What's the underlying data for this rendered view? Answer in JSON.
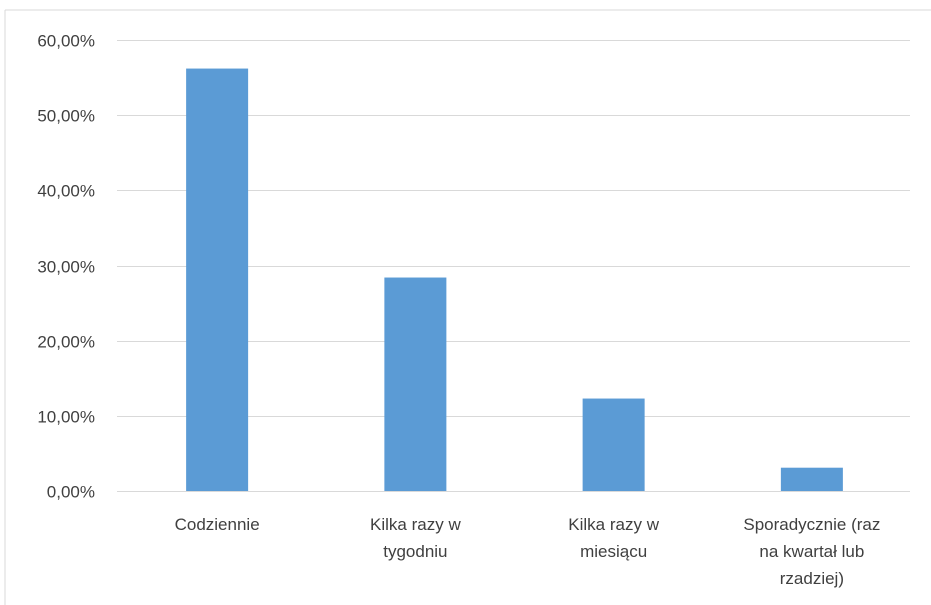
{
  "chart_data": {
    "type": "bar",
    "title": "",
    "xlabel": "",
    "ylabel": "",
    "categories": [
      [
        "Codziennie"
      ],
      [
        "Kilka razy w",
        "tygodniu"
      ],
      [
        "Kilka razy w",
        "miesiącu"
      ],
      [
        "Sporadycznie (raz",
        "na kwartał lub",
        "rzadziej)"
      ]
    ],
    "values": [
      56.2,
      28.4,
      12.3,
      3.1
    ],
    "ylim": [
      0,
      60
    ],
    "yticks": [
      0,
      10,
      20,
      30,
      40,
      50,
      60
    ],
    "ytick_labels": [
      "0,00%",
      "10,00%",
      "20,00%",
      "30,00%",
      "40,00%",
      "50,00%",
      "60,00%"
    ],
    "grid": true,
    "legend": "none",
    "colors": {
      "bar": "#5b9bd5",
      "grid": "#d9d9d9",
      "axis": "#d9d9d9",
      "text": "#404040"
    }
  }
}
